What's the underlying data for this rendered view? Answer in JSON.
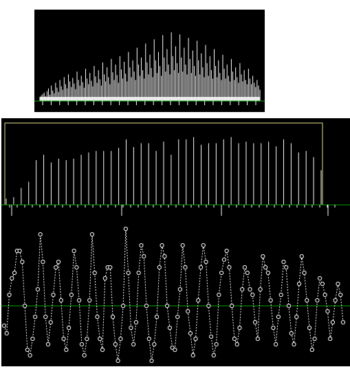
{
  "colors": {
    "background": "#000000",
    "line": "#ffffff",
    "axis": "#00aa00",
    "selection": "#e6e28a",
    "page": "#ffffff"
  },
  "overview": {
    "description_free": true,
    "peaks": [
      6,
      8,
      10,
      12,
      7,
      14,
      18,
      9,
      22,
      15,
      11,
      26,
      19,
      13,
      30,
      21,
      16,
      34,
      24,
      18,
      38,
      28,
      20,
      33,
      25,
      17,
      42,
      30,
      22,
      36,
      27,
      19,
      46,
      32,
      24,
      40,
      29,
      21,
      50,
      35,
      26,
      44,
      31,
      22,
      55,
      38,
      28,
      48,
      34,
      24,
      60,
      41,
      30,
      52,
      37,
      26,
      64,
      45,
      32,
      56,
      39,
      28,
      70,
      48,
      34,
      58,
      42,
      30,
      76,
      52,
      36,
      62,
      44,
      32,
      82,
      55,
      38,
      66,
      47,
      34,
      88,
      58,
      40,
      70,
      50,
      36,
      94,
      62,
      42,
      74,
      52,
      38,
      98,
      64,
      44,
      78,
      54,
      40,
      95,
      62,
      42,
      76,
      52,
      38,
      90,
      60,
      40,
      72,
      50,
      36,
      86,
      58,
      38,
      68,
      48,
      34,
      80,
      54,
      36,
      64,
      44,
      32,
      74,
      50,
      34,
      58,
      40,
      30,
      66,
      46,
      32,
      52,
      36,
      28,
      60,
      42,
      30,
      48,
      34,
      26,
      54,
      38,
      28,
      44,
      30,
      24,
      46,
      32,
      24,
      36,
      26,
      20,
      30,
      22,
      16
    ]
  },
  "spectrum": {
    "bars": [
      0.08,
      0.1,
      0.22,
      0.3,
      0.58,
      0.65,
      0.55,
      0.6,
      0.58,
      0.6,
      0.65,
      0.68,
      0.7,
      0.7,
      0.7,
      0.74,
      0.85,
      0.75,
      0.8,
      0.8,
      0.7,
      0.82,
      0.65,
      0.85,
      0.85,
      0.88,
      0.78,
      0.8,
      0.8,
      0.85,
      0.88,
      0.8,
      0.82,
      0.8,
      0.8,
      0.82,
      0.76,
      0.85,
      0.8,
      0.68,
      0.7,
      0.62,
      0.45
    ],
    "selection": {
      "start": 0.0,
      "end": 0.93
    }
  },
  "waveform": {
    "samples": [
      -0.18,
      -0.25,
      0.1,
      0.25,
      0.3,
      0.5,
      0.5,
      0.4,
      0.0,
      -0.4,
      -0.45,
      -0.3,
      -0.1,
      0.15,
      0.65,
      0.4,
      -0.1,
      -0.35,
      -0.15,
      0.1,
      0.35,
      0.4,
      0.05,
      -0.3,
      -0.4,
      -0.2,
      0.1,
      0.5,
      0.35,
      0.05,
      -0.35,
      -0.45,
      -0.3,
      0.05,
      0.65,
      0.3,
      -0.1,
      -0.3,
      -0.4,
      0.25,
      0.35,
      0.35,
      -0.1,
      -0.35,
      -0.5,
      -0.3,
      0.0,
      0.7,
      0.3,
      -0.2,
      -0.35,
      -0.15,
      0.3,
      0.55,
      0.45,
      0.0,
      -0.3,
      -0.5,
      -0.35,
      -0.1,
      0.35,
      0.55,
      0.45,
      0.0,
      -0.2,
      -0.38,
      -0.4,
      -0.1,
      0.15,
      0.55,
      0.35,
      -0.05,
      -0.25,
      -0.45,
      -0.3,
      0.05,
      0.35,
      0.55,
      0.4,
      0.0,
      -0.28,
      -0.45,
      -0.35,
      0.1,
      0.3,
      0.42,
      0.5,
      0.35,
      0.0,
      -0.3,
      -0.35,
      -0.2,
      0.15,
      0.35,
      0.3,
      0.15,
      0.1,
      -0.15,
      -0.3,
      0.15,
      0.45,
      0.35,
      0.3,
      0.05,
      -0.2,
      -0.35,
      -0.1,
      0.1,
      0.4,
      0.35,
      0.0,
      -0.25,
      -0.35,
      -0.1,
      0.2,
      0.45,
      0.3,
      0.05,
      -0.2,
      -0.4,
      -0.3,
      0.05,
      0.25,
      0.2,
      0.1,
      -0.05,
      -0.3,
      -0.15,
      0.05,
      0.2,
      0.1,
      -0.15
    ]
  }
}
